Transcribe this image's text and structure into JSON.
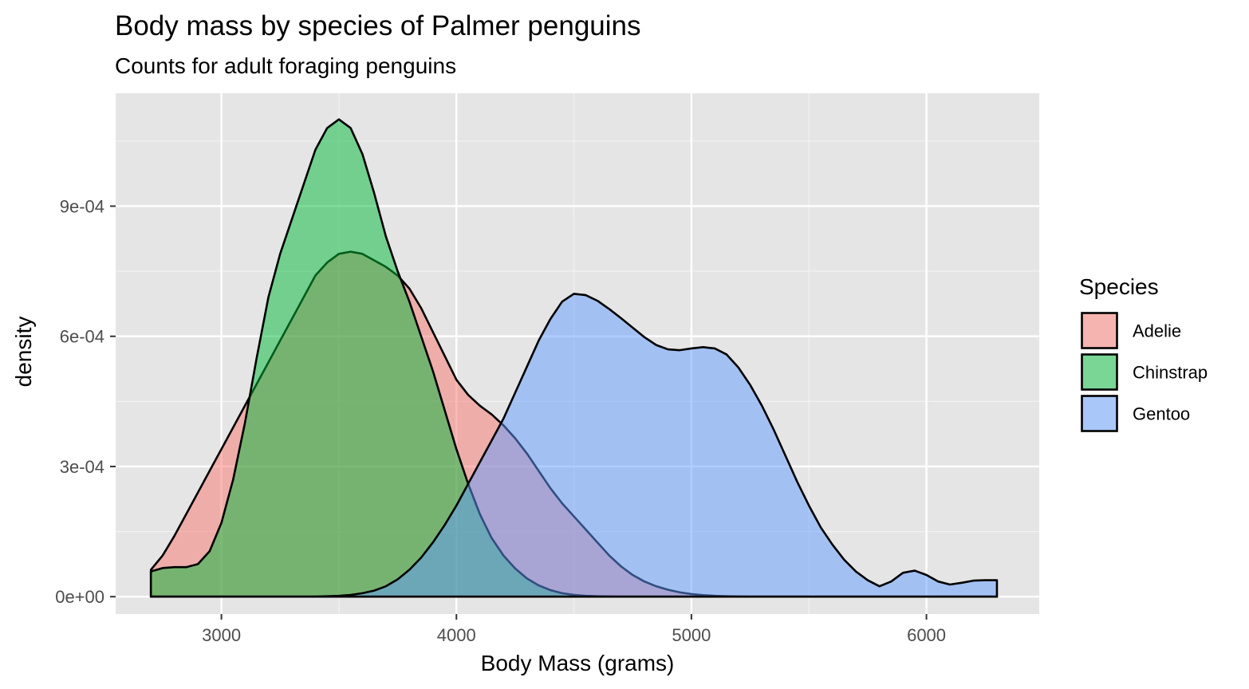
{
  "chart_data": {
    "type": "area",
    "title": "Body mass by species of Palmer penguins",
    "subtitle": "Counts for adult foraging penguins",
    "xlabel": "Body Mass (grams)",
    "ylabel": "density",
    "xlim": [
      2550,
      6480
    ],
    "ylim": [
      -4e-05,
      0.00116
    ],
    "x_ticks": [
      3000,
      4000,
      5000,
      6000
    ],
    "x_tick_labels": [
      "3000",
      "4000",
      "5000",
      "6000"
    ],
    "x_minor_ticks": [
      3500,
      4500,
      5500
    ],
    "y_ticks": [
      0,
      0.0003,
      0.0006,
      0.0009
    ],
    "y_tick_labels": [
      "0e+00",
      "3e-04",
      "6e-04",
      "9e-04"
    ],
    "y_minor_ticks": [
      0.00015,
      0.00045,
      0.00075,
      0.00105
    ],
    "grid": true,
    "legend": {
      "title": "Species",
      "position": "right"
    },
    "series": [
      {
        "name": "Adelie",
        "color": "#F8766D",
        "x": [
          2700,
          2750,
          2800,
          2850,
          2900,
          2950,
          3000,
          3050,
          3100,
          3150,
          3200,
          3250,
          3300,
          3350,
          3400,
          3450,
          3500,
          3550,
          3600,
          3650,
          3700,
          3750,
          3800,
          3850,
          3900,
          3950,
          4000,
          4050,
          4100,
          4150,
          4200,
          4250,
          4300,
          4350,
          4400,
          4450,
          4500,
          4550,
          4600,
          4650,
          4700,
          4750,
          4800,
          4850,
          4900,
          4950,
          5000,
          5050,
          5100,
          5150,
          5200,
          5250,
          5300,
          5350,
          5400,
          5450,
          5500,
          5550,
          5600,
          5650,
          5700,
          5750,
          5800,
          5850,
          5900,
          5950,
          6000,
          6050,
          6100,
          6150,
          6200,
          6250,
          6300
        ],
        "values": [
          6.2e-05,
          9.5e-05,
          0.00014,
          0.00019,
          0.00024,
          0.00029,
          0.00034,
          0.00039,
          0.00044,
          0.00049,
          0.00054,
          0.00059,
          0.00064,
          0.00069,
          0.00074,
          0.00077,
          0.00079,
          0.000795,
          0.00079,
          0.000775,
          0.00076,
          0.00074,
          0.00071,
          0.000665,
          0.00061,
          0.000555,
          0.0005,
          0.000465,
          0.00044,
          0.00042,
          0.000395,
          0.000365,
          0.00033,
          0.00029,
          0.00025,
          0.000215,
          0.000185,
          0.000155,
          0.000125,
          9.5e-05,
          7e-05,
          5e-05,
          3.5e-05,
          2.4e-05,
          1.6e-05,
          1e-05,
          6e-06,
          3.5e-06,
          2e-06,
          1e-06,
          5e-07,
          2e-07,
          1e-07,
          0,
          0,
          0,
          0,
          0,
          0,
          0,
          0,
          0,
          0,
          0,
          0,
          0,
          0,
          0,
          0,
          0,
          0,
          0,
          0
        ]
      },
      {
        "name": "Chinstrap",
        "color": "#00BA38",
        "x": [
          2700,
          2750,
          2800,
          2850,
          2900,
          2950,
          3000,
          3050,
          3100,
          3150,
          3200,
          3250,
          3300,
          3350,
          3400,
          3450,
          3500,
          3550,
          3600,
          3650,
          3700,
          3750,
          3800,
          3850,
          3900,
          3950,
          4000,
          4050,
          4100,
          4150,
          4200,
          4250,
          4300,
          4350,
          4400,
          4450,
          4500,
          4550,
          4600,
          4650,
          4700,
          4750,
          4800,
          4850,
          4900,
          4950,
          5000,
          5050,
          5100,
          5150,
          5200,
          5250,
          5300,
          5350,
          5400,
          5450,
          5500,
          5550,
          5600,
          5650,
          5700,
          5750,
          5800,
          5850,
          5900,
          5950,
          6000,
          6050,
          6100,
          6150,
          6200,
          6250,
          6300
        ],
        "values": [
          5.8e-05,
          6.6e-05,
          6.8e-05,
          6.8e-05,
          7.5e-05,
          0.000105,
          0.00017,
          0.00027,
          0.0004,
          0.00055,
          0.00069,
          0.00079,
          0.00087,
          0.00095,
          0.00103,
          0.00108,
          0.0011,
          0.00108,
          0.00102,
          0.00093,
          0.00083,
          0.00075,
          0.00068,
          0.0006,
          0.00052,
          0.00043,
          0.00034,
          0.00026,
          0.00019,
          0.000135,
          9.5e-05,
          6.5e-05,
          4.2e-05,
          2.6e-05,
          1.5e-05,
          8e-06,
          4e-06,
          2e-06,
          1e-06,
          5e-07,
          2e-07,
          1e-07,
          0,
          0,
          0,
          0,
          0,
          0,
          0,
          0,
          0,
          0,
          0,
          0,
          0,
          0,
          0,
          0,
          0,
          0,
          0,
          0,
          0,
          0,
          0,
          0,
          0,
          0,
          0,
          0,
          0,
          0,
          0
        ]
      },
      {
        "name": "Gentoo",
        "color": "#619CFF",
        "x": [
          2700,
          2750,
          2800,
          2850,
          2900,
          2950,
          3000,
          3050,
          3100,
          3150,
          3200,
          3250,
          3300,
          3350,
          3400,
          3450,
          3500,
          3550,
          3600,
          3650,
          3700,
          3750,
          3800,
          3850,
          3900,
          3950,
          4000,
          4050,
          4100,
          4150,
          4200,
          4250,
          4300,
          4350,
          4400,
          4450,
          4500,
          4550,
          4600,
          4650,
          4700,
          4750,
          4800,
          4850,
          4900,
          4950,
          5000,
          5050,
          5100,
          5150,
          5200,
          5250,
          5300,
          5350,
          5400,
          5450,
          5500,
          5550,
          5600,
          5650,
          5700,
          5750,
          5800,
          5850,
          5900,
          5950,
          6000,
          6050,
          6100,
          6150,
          6200,
          6250,
          6300
        ],
        "values": [
          0,
          0,
          0,
          0,
          0,
          0,
          0,
          0,
          0,
          0,
          0,
          0,
          0,
          0,
          0,
          1e-06,
          2e-06,
          4e-06,
          8e-06,
          1.4e-05,
          2.4e-05,
          4e-05,
          6.2e-05,
          9e-05,
          0.000125,
          0.000165,
          0.00021,
          0.00026,
          0.00031,
          0.00036,
          0.00041,
          0.00047,
          0.00053,
          0.00059,
          0.00064,
          0.00068,
          0.000698,
          0.000695,
          0.000682,
          0.000663,
          0.000642,
          0.00062,
          0.000598,
          0.00058,
          0.00057,
          0.000568,
          0.000572,
          0.000575,
          0.000572,
          0.000558,
          0.000528,
          0.000488,
          0.00044,
          0.000385,
          0.000325,
          0.000265,
          0.00021,
          0.00016,
          0.00012,
          8.5e-05,
          5.8e-05,
          3.8e-05,
          2.4e-05,
          3.5e-05,
          5.5e-05,
          6e-05,
          5e-05,
          3.5e-05,
          2.8e-05,
          3.2e-05,
          3.7e-05,
          3.8e-05,
          3.8e-05
        ]
      }
    ]
  }
}
